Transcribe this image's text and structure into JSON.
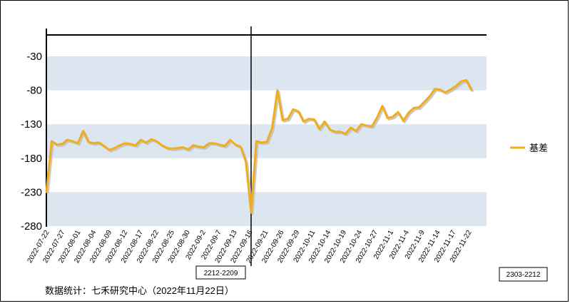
{
  "chart_data": {
    "type": "line",
    "title": "",
    "xlabel": "",
    "ylabel": "",
    "ylim": [
      -280,
      0
    ],
    "yticks": [
      -30,
      -80,
      -130,
      -180,
      -230,
      -280
    ],
    "xticks": [
      "2022-07-22",
      "2022-07-27",
      "2022-08-01",
      "2022-08-04",
      "2022-08-09",
      "2022-08-12",
      "2022-08-17",
      "2022-08-22",
      "2022-08-25",
      "2022-08-30",
      "2022-09-2",
      "2022-09-7",
      "2022-09-13",
      "2022-09-16",
      "2022-09-21",
      "2022-09-26",
      "2022-09-29",
      "2022-10-11",
      "2022-10-14",
      "2022-10-19",
      "2022-10-24",
      "2022-10-27",
      "2022-11-1",
      "2022-11-4",
      "2022-11-9",
      "2022-11-14",
      "2022-11-17",
      "2022-11-22"
    ],
    "legend_position": "right",
    "series": [
      {
        "name": "基差",
        "color": "#F0AE1E",
        "values": [
          -230,
          -155,
          -160,
          -159,
          -153,
          -155,
          -158,
          -140,
          -156,
          -158,
          -157,
          -162,
          -168,
          -165,
          -161,
          -158,
          -159,
          -161,
          -153,
          -157,
          -152,
          -155,
          -161,
          -165,
          -166,
          -165,
          -164,
          -167,
          -161,
          -163,
          -164,
          -158,
          -158,
          -160,
          -162,
          -153,
          -160,
          -163,
          -185,
          -260,
          -155,
          -157,
          -156,
          -136,
          -80,
          -124,
          -122,
          -108,
          -111,
          -126,
          -122,
          -123,
          -137,
          -126,
          -138,
          -141,
          -141,
          -144,
          -135,
          -140,
          -130,
          -132,
          -133,
          -120,
          -103,
          -121,
          -119,
          -112,
          -125,
          -113,
          -106,
          -105,
          -97,
          -89,
          -78,
          -79,
          -83,
          -79,
          -74,
          -67,
          -65,
          -80
        ]
      }
    ],
    "markers": [
      {
        "label": "2212-2209",
        "at_index": 39
      },
      {
        "label": "2303-2212"
      }
    ]
  },
  "footer": {
    "source": "数据统计：七禾研究中心（2022年11月22日）"
  }
}
